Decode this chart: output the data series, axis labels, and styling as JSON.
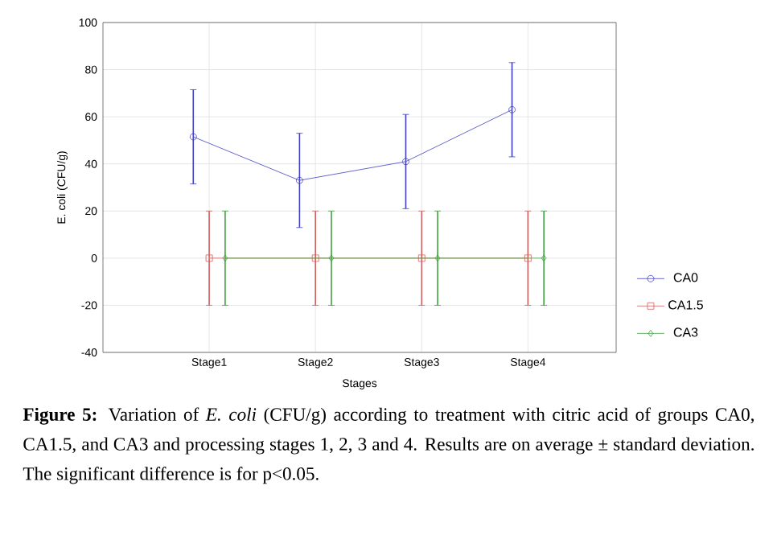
{
  "chart_data": {
    "type": "line",
    "xlabel": "Stages",
    "ylabel": "E. coli (CFU/g)",
    "categories": [
      "Stage1",
      "Stage2",
      "Stage3",
      "Stage4"
    ],
    "series": [
      {
        "name": "CA0",
        "color": "#4040c0",
        "marker": "circle",
        "values": [
          51.5,
          33,
          41,
          63
        ],
        "errors": [
          20,
          20,
          20,
          20
        ]
      },
      {
        "name": "CA1.5",
        "color": "#d06060",
        "marker": "square",
        "values": [
          0,
          0,
          0,
          0
        ],
        "errors": [
          20,
          20,
          20,
          20
        ]
      },
      {
        "name": "CA3",
        "color": "#40a040",
        "marker": "diamond",
        "values": [
          0,
          0,
          0,
          0
        ],
        "errors": [
          20,
          20,
          20,
          20
        ]
      }
    ],
    "ylim": [
      -40,
      100
    ],
    "yticks": [
      -40,
      -20,
      0,
      20,
      40,
      60,
      80,
      100
    ],
    "grid": true,
    "legend": "right",
    "line_style": "solid",
    "annotations": [
      "**Figure 5:** Variation of *E. coli* (CFU/g) according to treatment with citric acid of groups CA0, CA1.5, and CA3 and processing stages 1, 2, 3 and 4. Results are on average ± standard deviation. The significant difference is for p<0.05."
    ]
  }
}
